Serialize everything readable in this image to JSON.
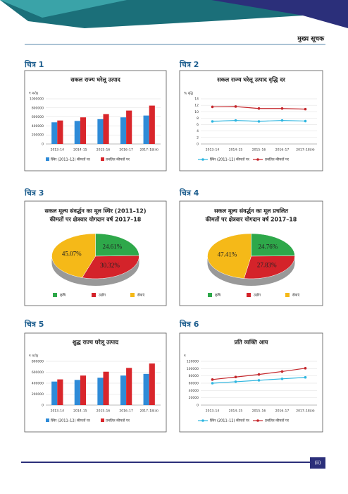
{
  "header": {
    "title": "मुख्य सूचक"
  },
  "figures": [
    "चित्र 1",
    "चित्र 2",
    "चित्र 3",
    "चित्र 4",
    "चित्र 5",
    "चित्र 6"
  ],
  "chart_data": [
    {
      "type": "bar",
      "title": "सकल राज्य घरेलू उत्पाद",
      "ylabel": "₹ करोड़",
      "categories": [
        "2013–14",
        "2014–15",
        "2015–16",
        "2016–17",
        "2017–18(अ)"
      ],
      "ylim": [
        0,
        1000000
      ],
      "yticks": [
        0,
        200000,
        400000,
        600000,
        800000,
        1000000
      ],
      "grid": true,
      "series": [
        {
          "name": "स्थिर (2011–12) कीमतों पर",
          "color": "#2e8bd8",
          "values": [
            480000,
            510000,
            550000,
            590000,
            630000
          ]
        },
        {
          "name": "प्रचलित कीमतों पर",
          "color": "#d9262b",
          "values": [
            520000,
            590000,
            660000,
            740000,
            850000
          ]
        }
      ]
    },
    {
      "type": "line",
      "title": "सकल राज्य घरेलू उत्पाद वृद्धि दर",
      "ylabel": "% वृद्धि",
      "categories": [
        "2013–14",
        "2014–15",
        "2015–16",
        "2016–17",
        "2017–18(अ)"
      ],
      "ylim": [
        0,
        14
      ],
      "yticks": [
        0,
        2,
        4,
        6,
        8,
        10,
        12,
        14
      ],
      "grid": true,
      "series": [
        {
          "name": "स्थिर (2011–12) कीमतों पर",
          "color": "#2eb6e0",
          "values": [
            7.0,
            7.3,
            7.0,
            7.3,
            7.1
          ]
        },
        {
          "name": "प्रचलित कीमतों पर",
          "color": "#c4262b",
          "values": [
            11.5,
            11.6,
            11.0,
            11.0,
            10.8
          ]
        }
      ]
    },
    {
      "type": "pie",
      "title": [
        "सकल मूल्य संवर्द्धन का मूल स्थिर (2011–12)",
        "कीमतों पर क्षेत्रवार योगदान वर्ष 2017–18"
      ],
      "categories": [
        "कृषि",
        "उद्योग",
        "सेवाएं"
      ],
      "values": [
        24.61,
        30.32,
        45.07
      ],
      "value_labels": [
        "24.61%",
        "30.32%",
        "45.07%"
      ],
      "colors": [
        "#2ea84a",
        "#d4232a",
        "#f5b918"
      ]
    },
    {
      "type": "pie",
      "title": [
        "सकल मूल्य संवर्द्धन का मूल प्रचलित",
        "कीमतों पर क्षेत्रवार योगदान वर्ष 2017–18"
      ],
      "categories": [
        "कृषि",
        "उद्योग",
        "सेवाएं"
      ],
      "values": [
        24.76,
        27.83,
        47.41
      ],
      "value_labels": [
        "24.76%",
        "27.83%",
        "47.41%"
      ],
      "colors": [
        "#2ea84a",
        "#d4232a",
        "#f5b918"
      ]
    },
    {
      "type": "bar",
      "title": "शुद्ध राज्य घरेलू उत्पाद",
      "ylabel": "₹ करोड़",
      "categories": [
        "2013–14",
        "2014–15",
        "2015–16",
        "2016–17",
        "2017–18(अ)"
      ],
      "ylim": [
        0,
        800000
      ],
      "yticks": [
        0,
        200000,
        400000,
        600000,
        800000
      ],
      "grid": true,
      "series": [
        {
          "name": "स्थिर (2011–12) कीमतों पर",
          "color": "#2e8bd8",
          "values": [
            430000,
            460000,
            500000,
            540000,
            570000
          ]
        },
        {
          "name": "प्रचलित कीमतों पर",
          "color": "#d9262b",
          "values": [
            470000,
            540000,
            610000,
            680000,
            760000
          ]
        }
      ]
    },
    {
      "type": "line",
      "title": "प्रति व्यक्ति आय",
      "ylabel": "₹",
      "categories": [
        "2013–14",
        "2014–15",
        "2015–16",
        "2016–17",
        "2017–18(अ)"
      ],
      "ylim": [
        0,
        120000
      ],
      "yticks": [
        0,
        20000,
        40000,
        60000,
        80000,
        100000,
        120000
      ],
      "grid": true,
      "series": [
        {
          "name": "स्थिर (2011–12) कीमतों पर",
          "color": "#2eb6e0",
          "values": [
            60000,
            64000,
            68000,
            72000,
            76000
          ]
        },
        {
          "name": "प्रचलित कीमतों पर",
          "color": "#c4262b",
          "values": [
            70000,
            77000,
            84000,
            92000,
            101000
          ]
        }
      ]
    }
  ],
  "footer": {
    "page": "(ii)"
  }
}
